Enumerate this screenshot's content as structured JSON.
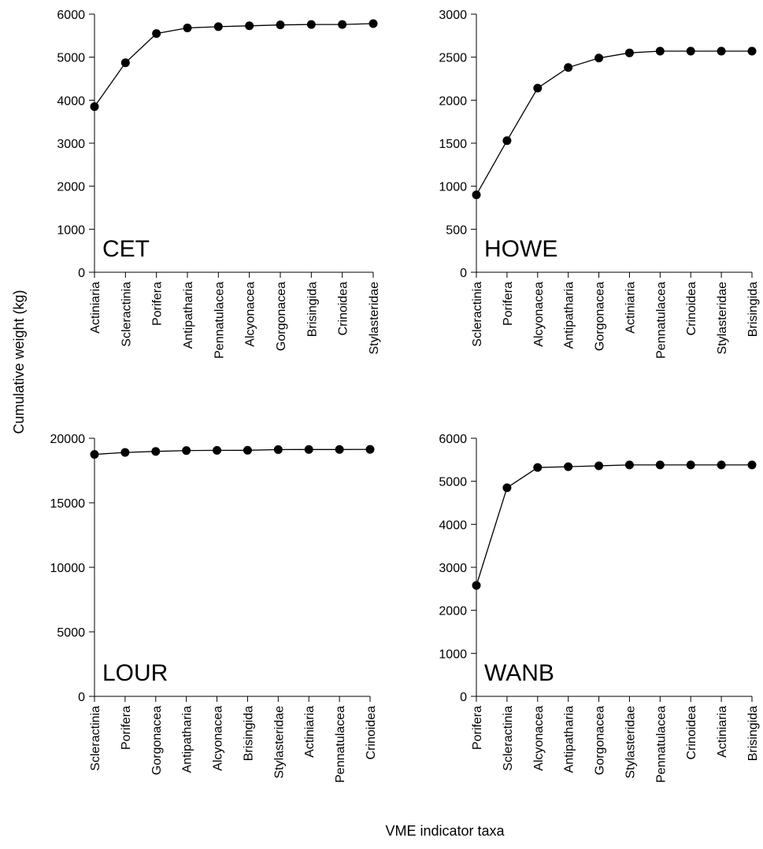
{
  "figure": {
    "ylabel": "Cumulative weight (kg)",
    "xlabel": "VME indicator taxa"
  },
  "chart_data": [
    {
      "type": "line",
      "panel_label": "CET",
      "categories": [
        "Actiniaria",
        "Scleractinia",
        "Porifera",
        "Antipatharia",
        "Pennatulacea",
        "Alcyonacea",
        "Gorgonacea",
        "Brisingida",
        "Crinoidea",
        "Stylasteridae"
      ],
      "values": [
        3850,
        4870,
        5550,
        5680,
        5710,
        5730,
        5750,
        5760,
        5760,
        5780
      ],
      "ylim": [
        0,
        6000
      ],
      "yticks": [
        0,
        1000,
        2000,
        3000,
        4000,
        5000,
        6000
      ],
      "markers": true,
      "grid": false
    },
    {
      "type": "line",
      "panel_label": "HOWE",
      "categories": [
        "Scleractinia",
        "Porifera",
        "Alcyonacea",
        "Antipatharia",
        "Gorgonacea",
        "Actiniaria",
        "Pennatulacea",
        "Crinoidea",
        "Stylasteridae",
        "Brisingida"
      ],
      "values": [
        900,
        1530,
        2140,
        2380,
        2490,
        2550,
        2570,
        2570,
        2570,
        2570
      ],
      "ylim": [
        0,
        3000
      ],
      "yticks": [
        0,
        500,
        1000,
        1500,
        2000,
        2500,
        3000
      ],
      "markers": true,
      "grid": false
    },
    {
      "type": "line",
      "panel_label": "LOUR",
      "categories": [
        "Scleractinia",
        "Porifera",
        "Gorgonacea",
        "Antipatharia",
        "Alcyonacea",
        "Brisingida",
        "Stylasteridae",
        "Actiniaria",
        "Pennatulacea",
        "Crinoidea"
      ],
      "values": [
        18750,
        18900,
        18980,
        19050,
        19060,
        19070,
        19120,
        19130,
        19130,
        19140
      ],
      "ylim": [
        0,
        20000
      ],
      "yticks": [
        0,
        5000,
        10000,
        15000,
        20000
      ],
      "markers": true,
      "grid": false
    },
    {
      "type": "line",
      "panel_label": "WANB",
      "categories": [
        "Porifera",
        "Scleractinia",
        "Alcyonacea",
        "Antipatharia",
        "Gorgonacea",
        "Stylasteridae",
        "Pennatulacea",
        "Crinoidea",
        "Actiniaria",
        "Brisingida"
      ],
      "values": [
        2580,
        4850,
        5320,
        5340,
        5360,
        5380,
        5380,
        5380,
        5380,
        5380
      ],
      "ylim": [
        0,
        6000
      ],
      "yticks": [
        0,
        1000,
        2000,
        3000,
        4000,
        5000,
        6000
      ],
      "markers": true,
      "grid": false
    }
  ]
}
